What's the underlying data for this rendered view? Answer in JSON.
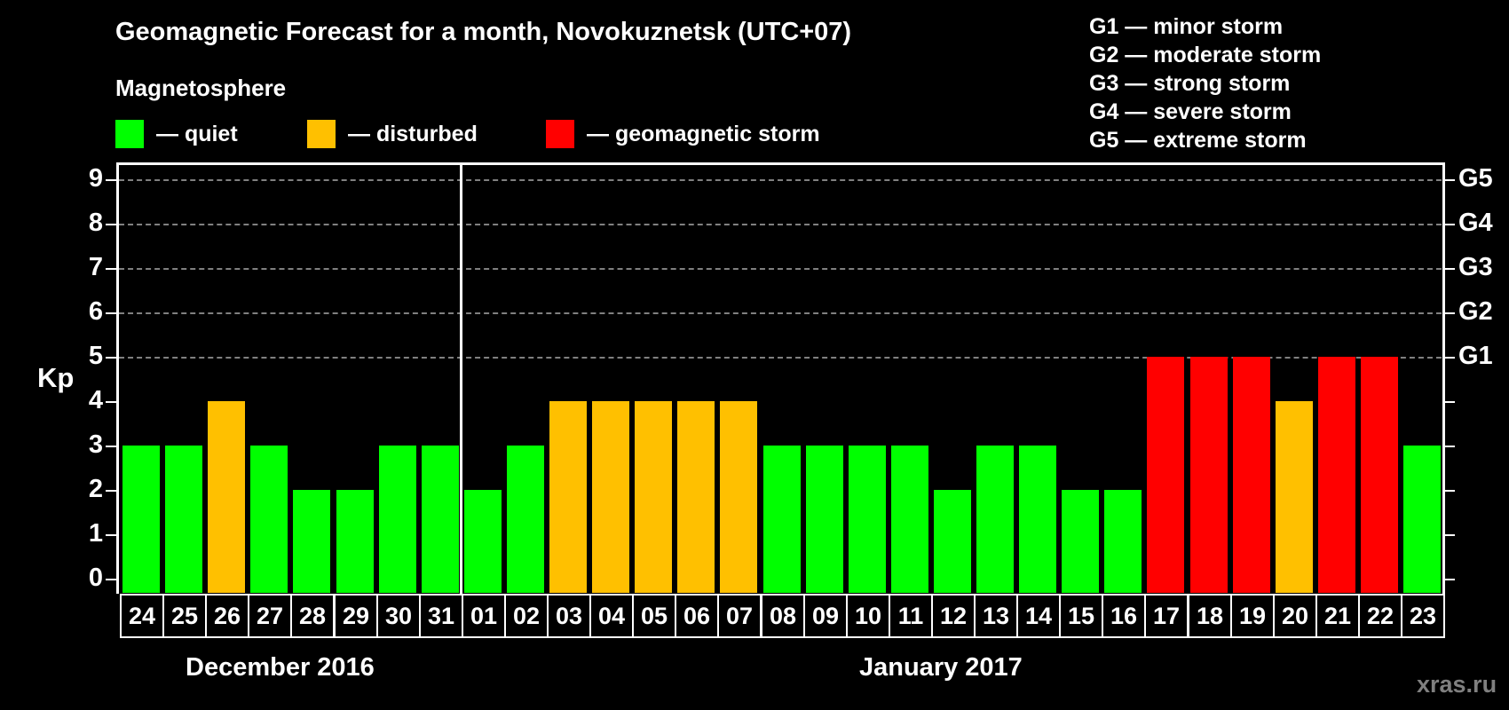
{
  "header": {
    "title": "Geomagnetic Forecast for a month, Novokuznetsk (UTC+07)",
    "subtitle": "Magnetosphere"
  },
  "legend": [
    {
      "label": "— quiet",
      "color": "#00ff00"
    },
    {
      "label": "— disturbed",
      "color": "#ffc000"
    },
    {
      "label": "— geomagnetic storm",
      "color": "#ff0000"
    }
  ],
  "storm_levels": [
    "G1 — minor storm",
    "G2 — moderate storm",
    "G3 — strong storm",
    "G4 — severe storm",
    "G5 — extreme storm"
  ],
  "axes": {
    "ylabel": "Kp",
    "yticks": [
      "0",
      "1",
      "2",
      "3",
      "4",
      "5",
      "6",
      "7",
      "8",
      "9"
    ],
    "right_ticks": [
      {
        "kp": 5,
        "label": "G1"
      },
      {
        "kp": 6,
        "label": "G2"
      },
      {
        "kp": 7,
        "label": "G3"
      },
      {
        "kp": 8,
        "label": "G4"
      },
      {
        "kp": 9,
        "label": "G5"
      }
    ]
  },
  "months": [
    {
      "label": "December 2016"
    },
    {
      "label": "January 2017"
    }
  ],
  "watermark": "xras.ru",
  "colors": {
    "quiet": "#00ff00",
    "disturbed": "#ffc000",
    "storm": "#ff0000"
  },
  "chart_data": {
    "type": "bar",
    "title": "Geomagnetic Forecast for a month, Novokuznetsk (UTC+07)",
    "subtitle": "Magnetosphere",
    "xlabel": "",
    "ylabel": "Kp",
    "ylim": [
      0,
      9
    ],
    "grid": true,
    "legend_position": "top",
    "categories": [
      "24",
      "25",
      "26",
      "27",
      "28",
      "29",
      "30",
      "31",
      "01",
      "02",
      "03",
      "04",
      "05",
      "06",
      "07",
      "08",
      "09",
      "10",
      "11",
      "12",
      "13",
      "14",
      "15",
      "16",
      "17",
      "18",
      "19",
      "20",
      "21",
      "22",
      "23"
    ],
    "values": [
      3,
      3,
      4,
      3,
      2,
      2,
      3,
      3,
      2,
      3,
      4,
      4,
      4,
      4,
      4,
      3,
      3,
      3,
      3,
      2,
      3,
      3,
      2,
      2,
      5,
      5,
      5,
      4,
      5,
      5,
      3
    ],
    "status": [
      "quiet",
      "quiet",
      "disturbed",
      "quiet",
      "quiet",
      "quiet",
      "quiet",
      "quiet",
      "quiet",
      "quiet",
      "disturbed",
      "disturbed",
      "disturbed",
      "disturbed",
      "disturbed",
      "quiet",
      "quiet",
      "quiet",
      "quiet",
      "quiet",
      "quiet",
      "quiet",
      "quiet",
      "quiet",
      "storm",
      "storm",
      "storm",
      "disturbed",
      "storm",
      "storm",
      "quiet"
    ],
    "month_groups": [
      {
        "label": "December 2016",
        "days": [
          "24",
          "25",
          "26",
          "27",
          "28",
          "29",
          "30",
          "31"
        ]
      },
      {
        "label": "January 2017",
        "days": [
          "01",
          "02",
          "03",
          "04",
          "05",
          "06",
          "07",
          "08",
          "09",
          "10",
          "11",
          "12",
          "13",
          "14",
          "15",
          "16",
          "17",
          "18",
          "19",
          "20",
          "21",
          "22",
          "23"
        ]
      }
    ],
    "secondary_y_labels": {
      "5": "G1",
      "6": "G2",
      "7": "G3",
      "8": "G4",
      "9": "G5"
    },
    "legend": [
      "quiet",
      "disturbed",
      "geomagnetic storm"
    ]
  }
}
